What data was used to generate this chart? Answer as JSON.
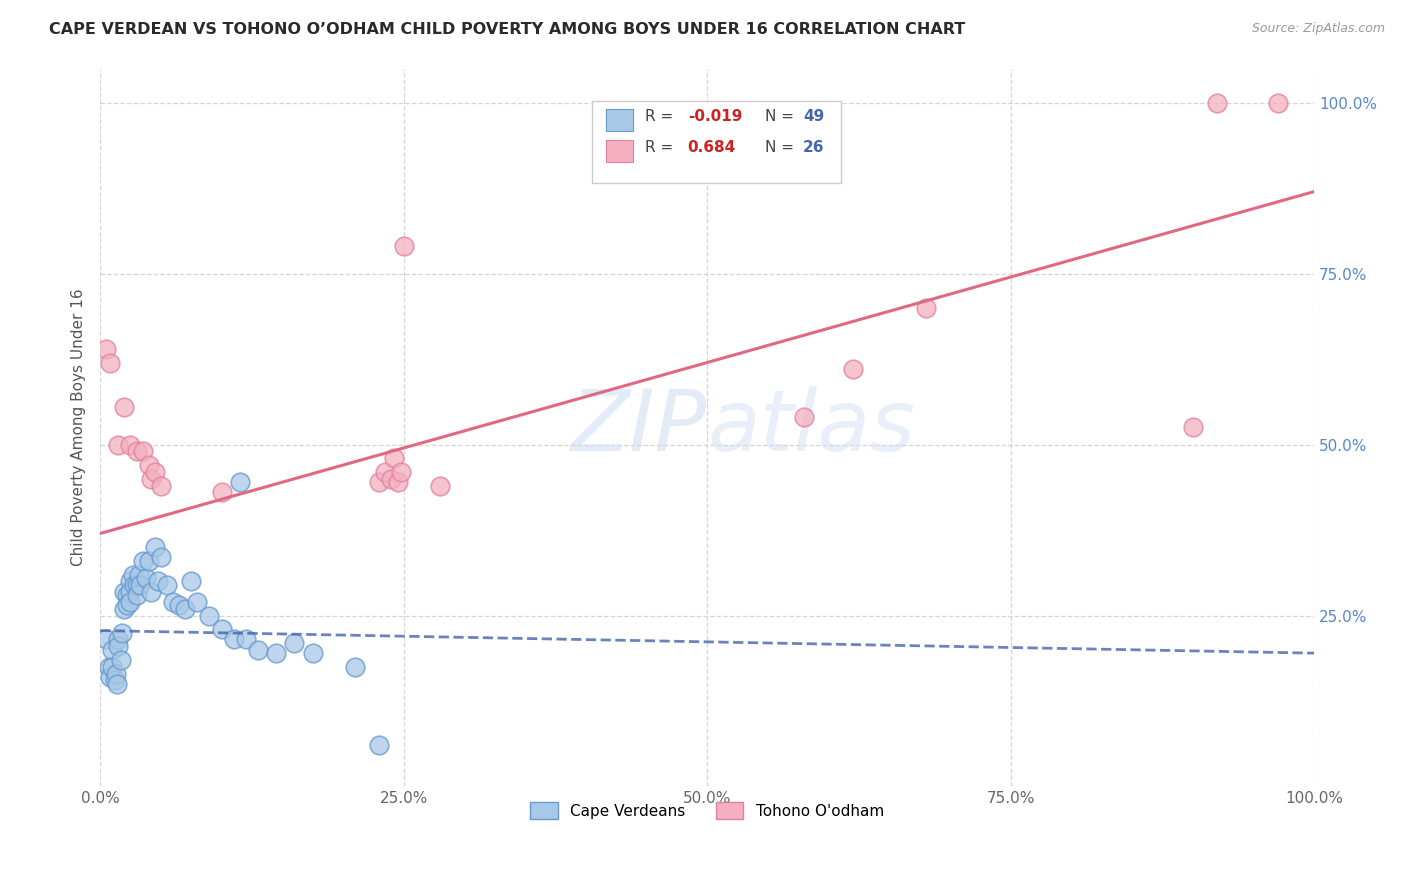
{
  "title": "CAPE VERDEAN VS TOHONO O’ODHAM CHILD POVERTY AMONG BOYS UNDER 16 CORRELATION CHART",
  "source": "Source: ZipAtlas.com",
  "ylabel": "Child Poverty Among Boys Under 16",
  "xlim": [
    0,
    1.0
  ],
  "ylim": [
    0,
    1.05
  ],
  "xticks": [
    0,
    0.25,
    0.5,
    0.75,
    1.0
  ],
  "yticks": [
    0.25,
    0.5,
    0.75,
    1.0
  ],
  "xticklabels": [
    "0.0%",
    "25.0%",
    "50.0%",
    "75.0%",
    "100.0%"
  ],
  "yticklabels": [
    "25.0%",
    "50.0%",
    "75.0%",
    "100.0%"
  ],
  "blue_fill": "#a8c8e8",
  "blue_edge": "#6699cc",
  "pink_fill": "#f4b0c0",
  "pink_edge": "#e080a0",
  "blue_line": "#4466aa",
  "pink_line": "#e06880",
  "yaxis_label_color": "#5588cc",
  "xaxis_label_color": "#666666",
  "grid_color": "#cccccc",
  "cape_verdean_x": [
    0.005,
    0.007,
    0.008,
    0.01,
    0.01,
    0.012,
    0.013,
    0.014,
    0.015,
    0.015,
    0.017,
    0.018,
    0.02,
    0.02,
    0.022,
    0.022,
    0.025,
    0.025,
    0.025,
    0.027,
    0.028,
    0.03,
    0.03,
    0.032,
    0.033,
    0.035,
    0.038,
    0.04,
    0.042,
    0.045,
    0.048,
    0.05,
    0.055,
    0.06,
    0.065,
    0.07,
    0.075,
    0.08,
    0.09,
    0.1,
    0.11,
    0.115,
    0.12,
    0.13,
    0.145,
    0.16,
    0.175,
    0.21,
    0.23
  ],
  "cape_verdean_y": [
    0.215,
    0.175,
    0.16,
    0.2,
    0.175,
    0.155,
    0.165,
    0.15,
    0.215,
    0.205,
    0.185,
    0.225,
    0.285,
    0.26,
    0.28,
    0.265,
    0.3,
    0.285,
    0.27,
    0.31,
    0.295,
    0.295,
    0.28,
    0.31,
    0.295,
    0.33,
    0.305,
    0.33,
    0.285,
    0.35,
    0.3,
    0.335,
    0.295,
    0.27,
    0.265,
    0.26,
    0.3,
    0.27,
    0.25,
    0.23,
    0.215,
    0.445,
    0.215,
    0.2,
    0.195,
    0.21,
    0.195,
    0.175,
    0.06
  ],
  "tohono_x": [
    0.005,
    0.008,
    0.015,
    0.02,
    0.025,
    0.03,
    0.035,
    0.04,
    0.042,
    0.045,
    0.05,
    0.1,
    0.23,
    0.235,
    0.24,
    0.242,
    0.245,
    0.248,
    0.25,
    0.28,
    0.58,
    0.62,
    0.68,
    0.9,
    0.92,
    0.97
  ],
  "tohono_y": [
    0.64,
    0.62,
    0.5,
    0.555,
    0.5,
    0.49,
    0.49,
    0.47,
    0.45,
    0.46,
    0.44,
    0.43,
    0.445,
    0.46,
    0.45,
    0.48,
    0.445,
    0.46,
    0.79,
    0.44,
    0.54,
    0.61,
    0.7,
    0.525,
    1.0,
    1.0
  ],
  "blue_trend_x0": 0.0,
  "blue_trend_y0": 0.228,
  "blue_trend_x1": 1.0,
  "blue_trend_y1": 0.195,
  "pink_trend_x0": 0.0,
  "pink_trend_y0": 0.37,
  "pink_trend_x1": 1.0,
  "pink_trend_y1": 0.87,
  "legend_r1": "-0.019",
  "legend_n1": "49",
  "legend_r2": "0.684",
  "legend_n2": "26"
}
